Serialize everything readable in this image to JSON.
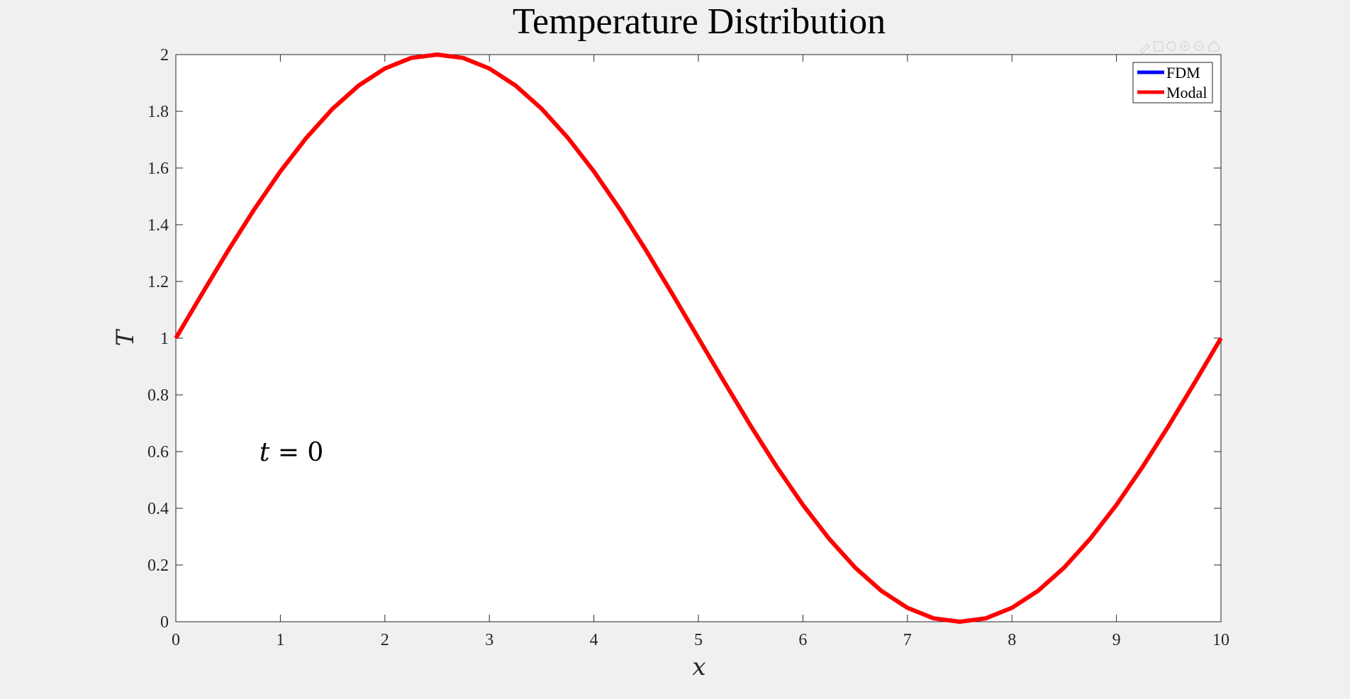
{
  "chart_data": {
    "type": "line",
    "title": "Temperature Distribution",
    "xlabel": "x",
    "ylabel": "T",
    "xlim": [
      0,
      10
    ],
    "ylim": [
      0,
      2
    ],
    "xticks": [
      "0",
      "1",
      "2",
      "3",
      "4",
      "5",
      "6",
      "7",
      "8",
      "9",
      "10"
    ],
    "yticks": [
      "0",
      "0.2",
      "0.4",
      "0.6",
      "0.8",
      "1",
      "1.2",
      "1.4",
      "1.6",
      "1.8",
      "2"
    ],
    "grid": false,
    "legend_position": "top-right",
    "series": [
      {
        "name": "FDM",
        "color": "#0000ff",
        "x": [],
        "y": []
      },
      {
        "name": "Modal",
        "color": "#ff0000",
        "x": [
          0,
          0.25,
          0.5,
          0.75,
          1,
          1.25,
          1.5,
          1.75,
          2,
          2.25,
          2.5,
          2.75,
          3,
          3.25,
          3.5,
          3.75,
          4,
          4.25,
          4.5,
          4.75,
          5,
          5.25,
          5.5,
          5.75,
          6,
          6.25,
          6.5,
          6.75,
          7,
          7.25,
          7.5,
          7.75,
          8,
          8.25,
          8.5,
          8.75,
          9,
          9.25,
          9.5,
          9.75,
          10
        ],
        "y": [
          1.0,
          1.156,
          1.309,
          1.454,
          1.588,
          1.707,
          1.809,
          1.891,
          1.951,
          1.988,
          2.0,
          1.988,
          1.951,
          1.891,
          1.809,
          1.707,
          1.588,
          1.454,
          1.309,
          1.156,
          1.0,
          0.844,
          0.691,
          0.546,
          0.412,
          0.293,
          0.191,
          0.109,
          0.049,
          0.012,
          0.0,
          0.012,
          0.049,
          0.109,
          0.191,
          0.293,
          0.412,
          0.546,
          0.691,
          0.844,
          1.0
        ]
      }
    ],
    "annotation": {
      "var": "t",
      "eq": " = 0",
      "x": 0.8,
      "y": 0.6
    }
  },
  "colors": {
    "page_bg": "#f0f0f0",
    "plot_bg": "#ffffff",
    "axis": "#262626"
  },
  "icons": [
    "pencil-icon",
    "save-icon",
    "brush-icon",
    "zoom-in-icon",
    "zoom-out-icon",
    "home-icon"
  ]
}
